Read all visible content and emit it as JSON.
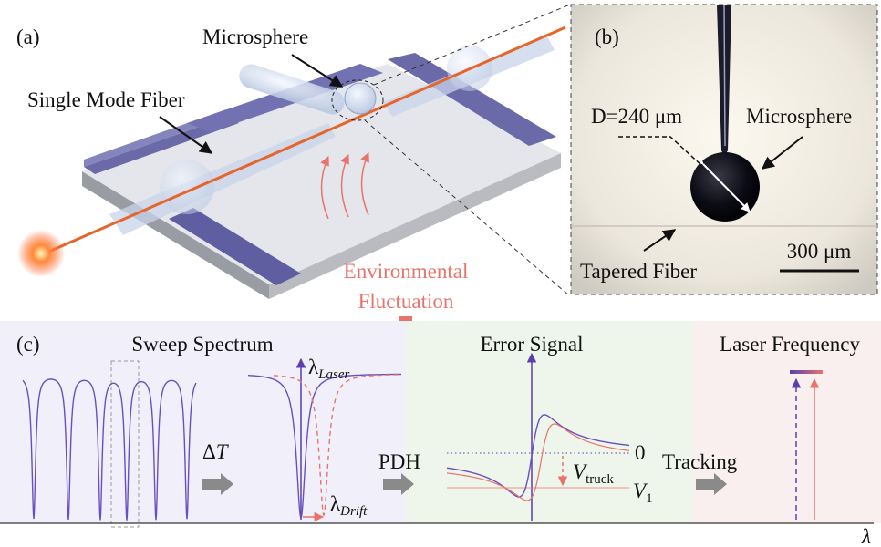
{
  "panel_a": {
    "label": "(a)",
    "microsphere": "Microsphere",
    "fiber": "Single Mode Fiber",
    "fluctuation": [
      "Environmental",
      "Fluctuation"
    ]
  },
  "panel_b": {
    "label": "(b)",
    "diameter": "D=240 μm",
    "microsphere": "Microsphere",
    "tapered_fiber": "Tapered Fiber",
    "scale_bar": "300 μm"
  },
  "panel_c": {
    "label": "(c)",
    "sweep_title": "Sweep Spectrum",
    "laser_symbol": {
      "symbol": "λ",
      "subscript": "Laser"
    },
    "delta_t": {
      "symbol": "Δ",
      "variable": "T"
    },
    "drift_symbol": {
      "symbol": "λ",
      "subscript": "Drift"
    },
    "pdh": "PDH",
    "error_title": "Error Signal",
    "zero": "0",
    "v_truck": {
      "symbol": "V",
      "subscript": "truck"
    },
    "v_1": {
      "symbol": "V",
      "subscript": "1"
    },
    "tracking": "Tracking",
    "frequency_title": "Laser Frequency",
    "axis": "λ"
  }
}
